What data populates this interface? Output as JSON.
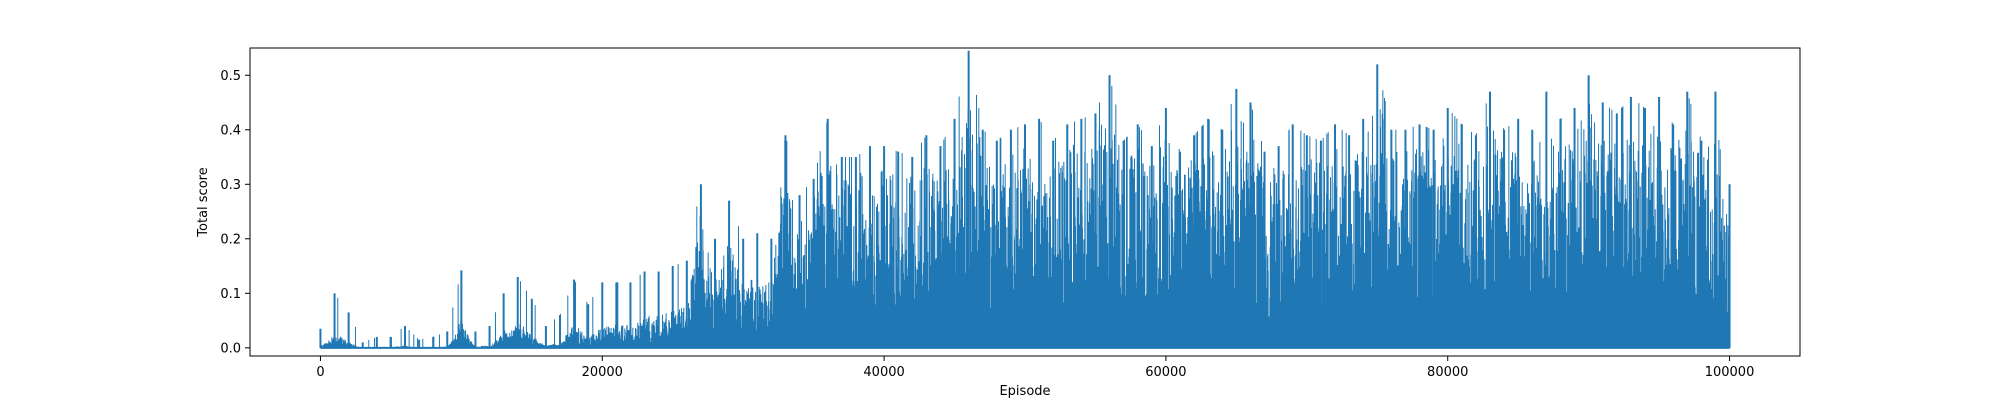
{
  "chart_data": {
    "type": "line",
    "title": "",
    "xlabel": "Episode",
    "ylabel": "Total score",
    "xlim": [
      -5000,
      105000
    ],
    "ylim": [
      -0.015,
      0.55
    ],
    "xticks": [
      0,
      20000,
      40000,
      60000,
      80000,
      100000
    ],
    "yticks": [
      0.0,
      0.1,
      0.2,
      0.3,
      0.4,
      0.5
    ],
    "grid": false,
    "legend": "none",
    "color": "#1f77b4",
    "series": [
      {
        "x": [
          0,
          1000,
          2000,
          3000,
          4000,
          5000,
          6000,
          7000,
          8000,
          9000,
          10000,
          11000,
          12000,
          13000,
          14000,
          15000,
          16000,
          17000,
          18000,
          19000,
          20000,
          21000,
          22000,
          23000,
          24000,
          25000,
          26000,
          27000,
          28000,
          29000,
          30000,
          31000,
          32000,
          33000,
          34000,
          35000,
          36000,
          37000,
          38000,
          39000,
          40000,
          41000,
          42000,
          43000,
          44000,
          45000,
          46000,
          47000,
          48000,
          49000,
          50000,
          51000,
          52000,
          53000,
          54000,
          55000,
          56000,
          57000,
          58000,
          59000,
          60000,
          61000,
          62000,
          63000,
          64000,
          65000,
          66000,
          67000,
          68000,
          69000,
          70000,
          71000,
          72000,
          73000,
          74000,
          75000,
          76000,
          77000,
          78000,
          79000,
          80000,
          81000,
          82000,
          83000,
          84000,
          85000,
          86000,
          87000,
          88000,
          89000,
          90000,
          91000,
          92000,
          93000,
          94000,
          95000,
          96000,
          97000,
          98000,
          99000,
          100000
        ],
        "min": [
          0.0,
          0.0,
          0.0,
          0.0,
          0.0,
          0.0,
          0.0,
          0.0,
          0.0,
          0.0,
          0.0,
          0.0,
          0.0,
          0.0,
          0.0,
          0.0,
          0.0,
          0.0,
          0.0,
          0.0,
          0.0,
          0.0,
          0.0,
          0.0,
          0.0,
          0.0,
          0.0,
          0.0,
          0.0,
          0.0,
          0.0,
          0.0,
          0.0,
          0.0,
          0.0,
          0.0,
          0.0,
          0.0,
          0.0,
          0.0,
          0.0,
          0.0,
          0.0,
          0.0,
          0.0,
          0.0,
          0.0,
          0.0,
          0.0,
          0.0,
          0.0,
          0.0,
          0.0,
          0.0,
          0.0,
          0.0,
          0.0,
          0.0,
          0.0,
          0.0,
          0.0,
          0.0,
          0.0,
          0.0,
          0.0,
          0.0,
          0.0,
          0.0,
          0.0,
          0.0,
          0.0,
          0.0,
          0.0,
          0.0,
          0.0,
          0.0,
          0.0,
          0.0,
          0.0,
          0.0,
          0.0,
          0.0,
          0.0,
          0.0,
          0.0,
          0.0,
          0.0,
          0.0,
          0.0,
          0.0,
          0.0,
          0.0,
          0.0,
          0.0,
          0.0,
          0.0,
          0.0,
          0.0,
          0.0,
          0.0,
          0.0
        ],
        "max": [
          0.035,
          0.1,
          0.065,
          0.01,
          0.02,
          0.02,
          0.04,
          0.015,
          0.02,
          0.03,
          0.142,
          0.03,
          0.04,
          0.1,
          0.13,
          0.09,
          0.04,
          0.06,
          0.125,
          0.08,
          0.12,
          0.12,
          0.12,
          0.14,
          0.14,
          0.15,
          0.16,
          0.3,
          0.2,
          0.27,
          0.2,
          0.21,
          0.2,
          0.39,
          0.28,
          0.31,
          0.42,
          0.35,
          0.35,
          0.37,
          0.37,
          0.36,
          0.35,
          0.39,
          0.37,
          0.42,
          0.545,
          0.4,
          0.38,
          0.4,
          0.41,
          0.42,
          0.38,
          0.41,
          0.42,
          0.43,
          0.5,
          0.38,
          0.41,
          0.37,
          0.44,
          0.36,
          0.39,
          0.42,
          0.4,
          0.475,
          0.45,
          0.36,
          0.37,
          0.41,
          0.39,
          0.38,
          0.41,
          0.39,
          0.42,
          0.52,
          0.4,
          0.4,
          0.41,
          0.4,
          0.44,
          0.41,
          0.39,
          0.47,
          0.4,
          0.42,
          0.4,
          0.47,
          0.42,
          0.44,
          0.5,
          0.45,
          0.43,
          0.46,
          0.44,
          0.46,
          0.41,
          0.47,
          0.38,
          0.47,
          0.3
        ]
      }
    ]
  }
}
